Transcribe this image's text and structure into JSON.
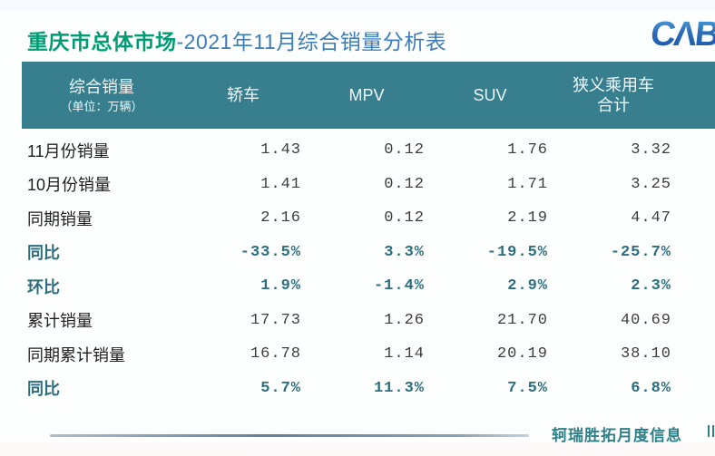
{
  "page": {
    "title_highlight": "重庆市总体市场",
    "title_rest": "-2021年11月综合销量分析表"
  },
  "logo": {
    "text": "CΛB"
  },
  "chart_data": {
    "type": "table",
    "title": "重庆市总体市场-2021年11月综合销量分析表",
    "unit": "万辆",
    "header": {
      "col0_line1": "综合销量",
      "col0_line2": "（单位：万辆）",
      "col_sedan": "轿车",
      "col_mpv": "MPV",
      "col_suv": "SUV",
      "col_npv_line1": "狭义乘用车",
      "col_npv_line2": "合计"
    },
    "rows": [
      {
        "label": "11月份销量",
        "values": [
          "1.43",
          "0.12",
          "1.76",
          "3.32"
        ],
        "emphasis": false
      },
      {
        "label": "10月份销量",
        "values": [
          "1.41",
          "0.12",
          "1.71",
          "3.25"
        ],
        "emphasis": false
      },
      {
        "label": "同期销量",
        "values": [
          "2.16",
          "0.12",
          "2.19",
          "4.47"
        ],
        "emphasis": false
      },
      {
        "label": "同比",
        "values": [
          "-33.5%",
          "3.3%",
          "-19.5%",
          "-25.7%"
        ],
        "emphasis": true
      },
      {
        "label": "环比",
        "values": [
          "1.9%",
          "-1.4%",
          "2.9%",
          "2.3%"
        ],
        "emphasis": true
      },
      {
        "label": "累计销量",
        "values": [
          "17.73",
          "1.26",
          "21.70",
          "40.69"
        ],
        "emphasis": false
      },
      {
        "label": "同期累计销量",
        "values": [
          "16.78",
          "1.14",
          "20.19",
          "38.10"
        ],
        "emphasis": false
      },
      {
        "label": "同比",
        "values": [
          "5.7%",
          "11.3%",
          "7.5%",
          "6.8%"
        ],
        "emphasis": true
      }
    ]
  },
  "footer": {
    "source_text": "轲瑞胜拓月度信息"
  },
  "colors": {
    "header_bg": "#377f8f",
    "title_green": "#009d75",
    "title_blue": "#3d7cba",
    "emphasis_teal": "#2c6e7e",
    "footer_teal": "#2d8087",
    "logo_blue_dark": "#1a57a8",
    "logo_blue_light": "#4fa7e0"
  }
}
